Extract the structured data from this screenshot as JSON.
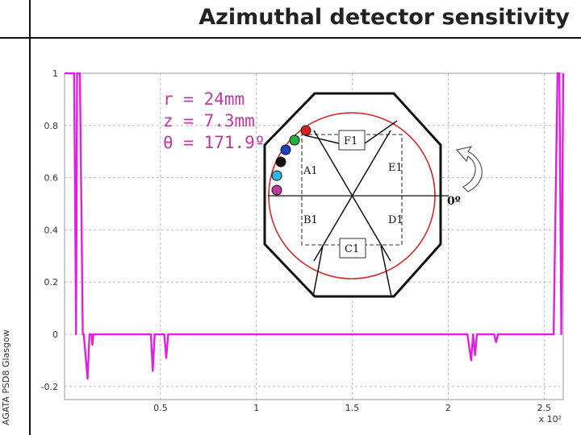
{
  "slide": {
    "title": "Azimuthal detector sensitivity",
    "side_label": "AGATA PSD8 Glasgow"
  },
  "params": [
    "r = 24mm",
    "z = 7.3mm",
    "θ = 171.9º"
  ],
  "diagram": {
    "segments": [
      "F1",
      "A1",
      "E1",
      "B1",
      "D1",
      "C1"
    ],
    "angle_label": "0º",
    "marker_colors": [
      "#e0201c",
      "#22b03a",
      "#1f3fbf",
      "#111111",
      "#2fb8e6",
      "#c0399c"
    ]
  },
  "colors": {
    "trace": "#e020e0",
    "grid": "#b0b0b0"
  },
  "chart_data": {
    "type": "line",
    "title": "",
    "xlabel": "",
    "ylabel": "",
    "x_multiplier": "x 10²",
    "xlim": [
      0,
      2.6
    ],
    "ylim": [
      -0.25,
      1
    ],
    "x_ticks": [
      0.5,
      1,
      1.5,
      2,
      2.5
    ],
    "x_tick_labels": [
      "0.5",
      "1",
      "1.5",
      "2",
      "2.5"
    ],
    "y_ticks": [
      -0.2,
      0,
      0.2,
      0.4,
      0.6,
      0.8,
      1
    ],
    "y_tick_labels": [
      "-0.2",
      "0",
      "0.2",
      "0.4",
      "0.6",
      "0.8",
      "1"
    ],
    "grid": true,
    "series": [
      {
        "color": "#e020e0",
        "x": [
          0.0,
          0.05,
          0.06,
          0.065,
          0.08,
          0.095,
          0.1,
          0.12,
          0.13,
          0.14,
          0.145,
          0.15,
          0.16,
          0.18,
          0.3,
          0.4,
          0.45,
          0.46,
          0.47,
          0.48,
          0.52,
          0.53,
          0.54,
          0.56,
          0.6,
          0.8,
          1.0,
          1.2,
          1.4,
          1.6,
          1.8,
          2.0,
          2.1,
          2.12,
          2.13,
          2.14,
          2.15,
          2.2,
          2.24,
          2.25,
          2.26,
          2.3,
          2.4,
          2.5,
          2.55,
          2.57,
          2.58,
          2.59,
          2.6
        ],
        "y": [
          1.0,
          1.0,
          0.0,
          1.0,
          1.0,
          0.0,
          0.0,
          -0.17,
          0.0,
          0.0,
          -0.04,
          0.0,
          0.0,
          0.0,
          0.0,
          0.0,
          0.0,
          -0.14,
          0.0,
          0.0,
          0.0,
          -0.09,
          0.0,
          0.0,
          0.0,
          0.0,
          0.0,
          0.0,
          0.0,
          0.0,
          0.0,
          0.0,
          0.0,
          -0.1,
          0.0,
          -0.08,
          0.0,
          0.0,
          0.0,
          -0.03,
          0.0,
          0.0,
          0.0,
          0.0,
          0.0,
          1.0,
          1.0,
          0.0,
          1.0
        ]
      }
    ]
  }
}
